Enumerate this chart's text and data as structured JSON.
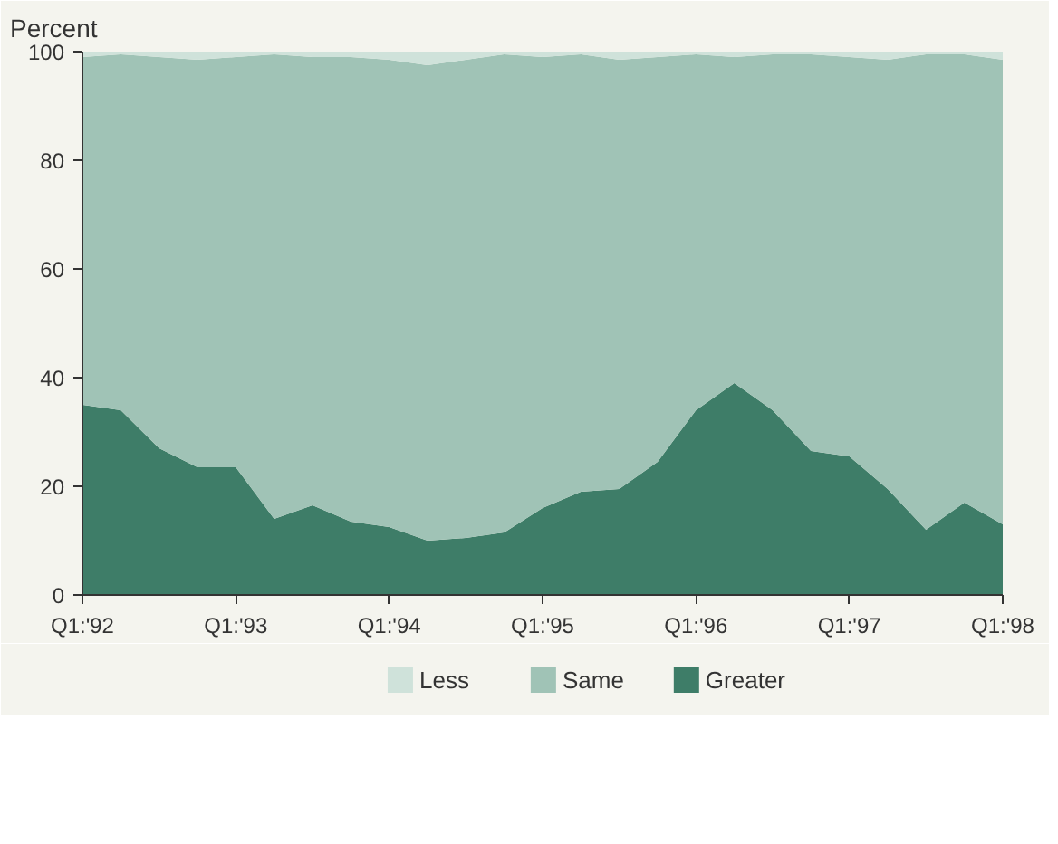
{
  "chart_data": {
    "type": "area",
    "stacked": true,
    "ylabel": "Percent",
    "categories": [
      "Q1:'92",
      null,
      null,
      null,
      "Q1:'93",
      null,
      null,
      null,
      "Q1:'94",
      null,
      null,
      null,
      "Q1:'95",
      null,
      null,
      null,
      "Q1:'96",
      null,
      null,
      null,
      "Q1:'97",
      null,
      null,
      null,
      "Q1:'98"
    ],
    "ylim": [
      0,
      100
    ],
    "yticks": [
      0,
      20,
      40,
      60,
      80,
      100
    ],
    "series": [
      {
        "name": "Greater",
        "color": "#3e7d68",
        "values": [
          35,
          34,
          27,
          23.5,
          23.5,
          14,
          16.5,
          13.5,
          12.5,
          10,
          10.5,
          11.5,
          16,
          19,
          19.5,
          24.5,
          34,
          39,
          34,
          26.5,
          25.5,
          19.5,
          12,
          17,
          13
        ]
      },
      {
        "name": "Same",
        "color": "#a0c3b6",
        "values": [
          64,
          65.5,
          72,
          75,
          75.5,
          85.5,
          82.5,
          85.5,
          86,
          87.5,
          88,
          88,
          83,
          80.5,
          79,
          74.5,
          65.5,
          60,
          65.5,
          73,
          73.5,
          79,
          87.5,
          82.5,
          85.5
        ]
      },
      {
        "name": "Less",
        "color": "#cfe2da",
        "values": [
          1,
          0.5,
          1,
          1.5,
          1,
          0.5,
          1,
          1,
          1.5,
          2.5,
          1.5,
          0.5,
          1,
          0.5,
          1.5,
          1,
          0.5,
          1,
          0.5,
          0.5,
          1,
          1.5,
          0.5,
          0.5,
          1.5
        ]
      }
    ],
    "legend": "bottom"
  }
}
